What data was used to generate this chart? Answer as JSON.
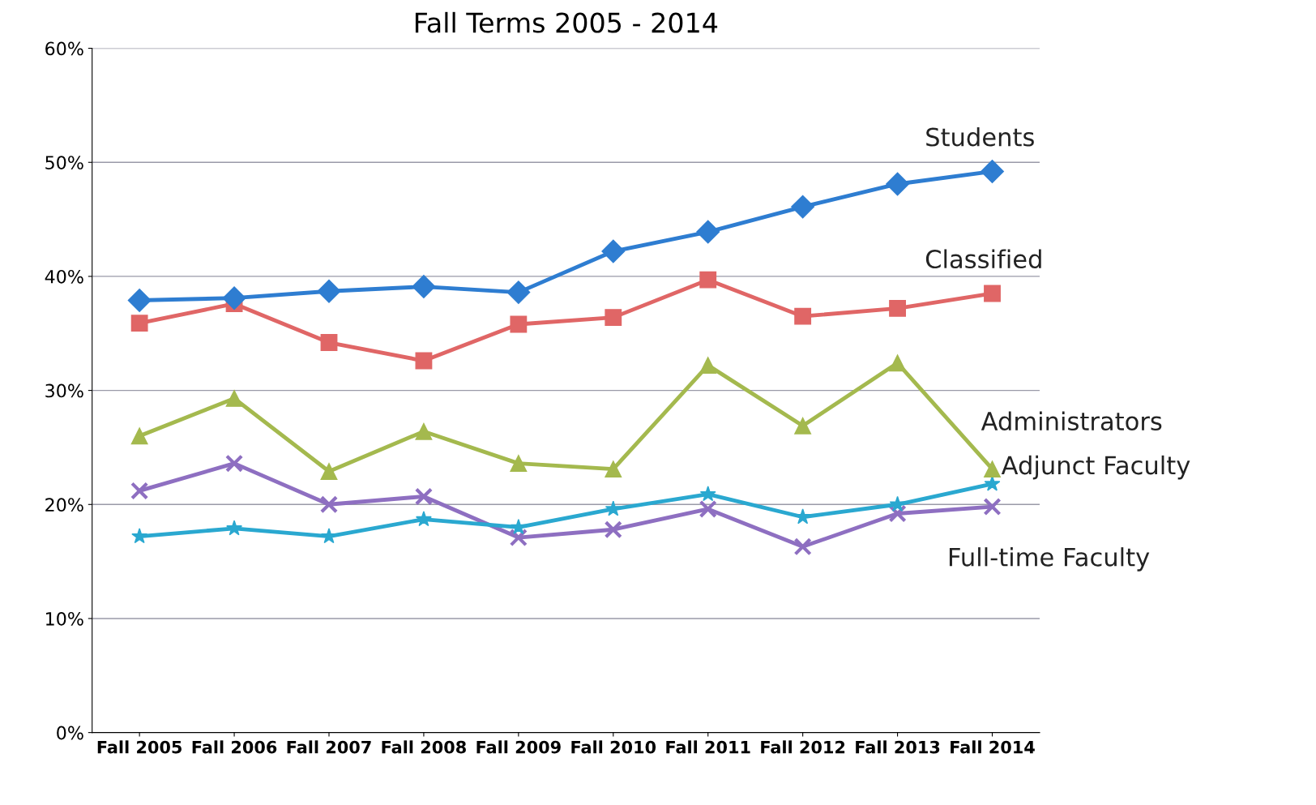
{
  "chart_data": {
    "type": "line",
    "title": "Fall Terms 2005 - 2014",
    "categories": [
      "Fall 2005",
      "Fall 2006",
      "Fall 2007",
      "Fall 2008",
      "Fall 2009",
      "Fall 2010",
      "Fall 2011",
      "Fall 2012",
      "Fall 2013",
      "Fall 2014"
    ],
    "series": [
      {
        "name": "Students",
        "color": "#2e7dd1",
        "marker": "diamond",
        "values": [
          37.9,
          38.1,
          38.7,
          39.1,
          38.6,
          42.2,
          43.9,
          46.1,
          48.1,
          49.2
        ]
      },
      {
        "name": "Classified",
        "color": "#e06666",
        "marker": "square",
        "values": [
          35.9,
          37.6,
          34.2,
          32.6,
          35.8,
          36.4,
          39.7,
          36.5,
          37.2,
          38.5
        ]
      },
      {
        "name": "Administrators",
        "color": "#a4b94e",
        "marker": "triangle",
        "values": [
          26.0,
          29.3,
          22.9,
          26.4,
          23.6,
          23.1,
          32.2,
          26.9,
          32.4,
          23.1
        ]
      },
      {
        "name": "Adjunct Faculty",
        "color": "#2aa8d0",
        "marker": "star",
        "values": [
          17.2,
          17.9,
          17.2,
          18.7,
          18.0,
          19.6,
          20.9,
          18.9,
          20.0,
          21.8
        ]
      },
      {
        "name": "Full-time Faculty",
        "color": "#8e6fc1",
        "marker": "cross",
        "values": [
          21.2,
          23.6,
          20.0,
          20.7,
          17.1,
          17.8,
          19.6,
          16.3,
          19.2,
          19.8
        ]
      }
    ],
    "ylim": [
      0,
      60
    ],
    "yticks": [
      {
        "value": 0,
        "label": "0%"
      },
      {
        "value": 10,
        "label": "10%"
      },
      {
        "value": 20,
        "label": "20%"
      },
      {
        "value": 30,
        "label": "30%"
      },
      {
        "value": 40,
        "label": "40%"
      },
      {
        "value": 50,
        "label": "50%"
      },
      {
        "value": 60,
        "label": "60%"
      }
    ],
    "grid": "y",
    "legend": false,
    "line_style": "solid"
  }
}
